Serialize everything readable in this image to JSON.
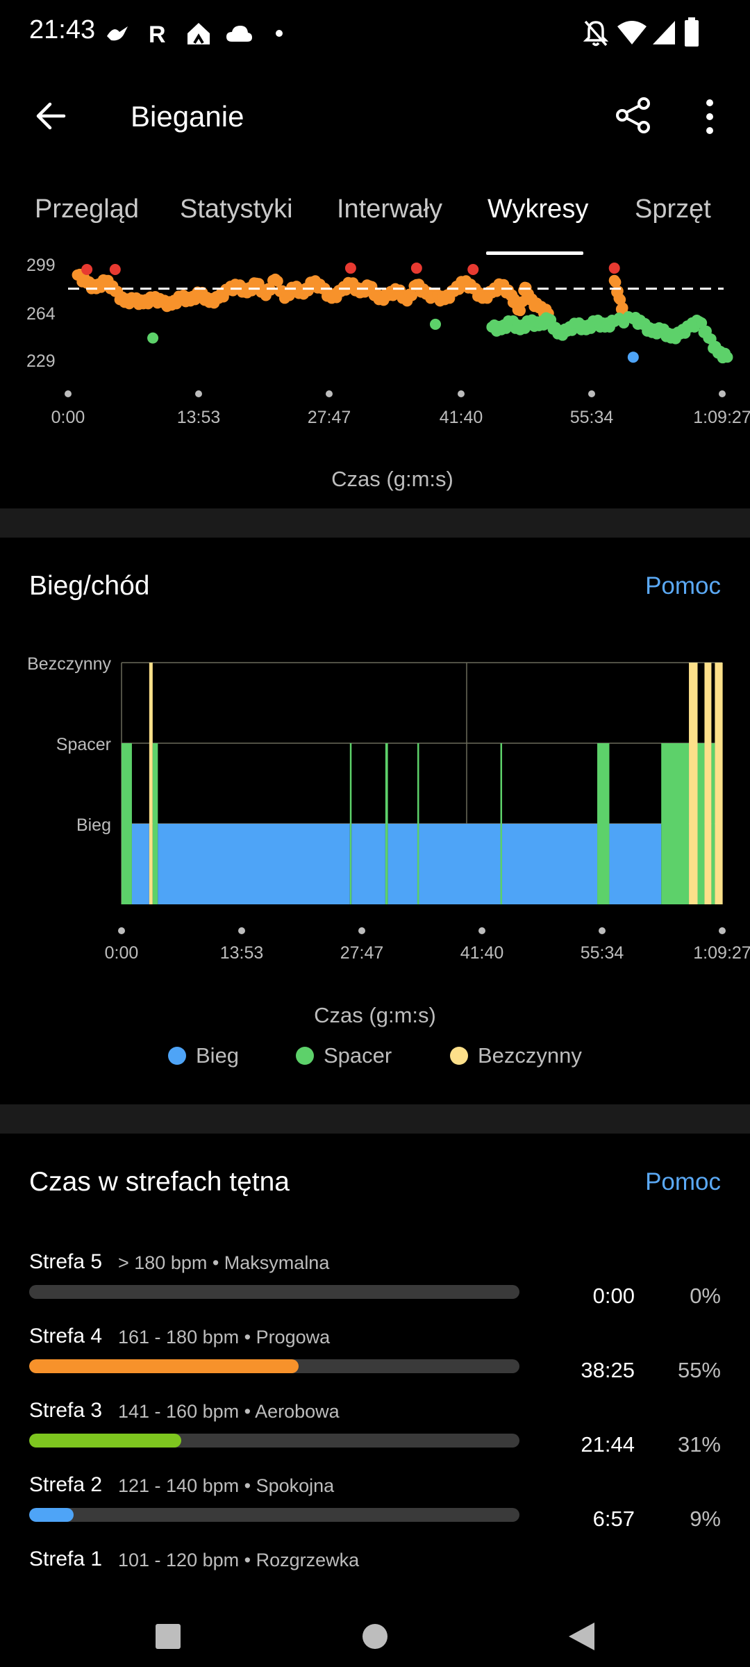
{
  "status_bar": {
    "time": "21:43",
    "left_icons": [
      "bird-icon",
      "r-icon",
      "home-icon",
      "cloud-icon",
      "dot-icon"
    ],
    "right_icons": [
      "bell-off-icon",
      "wifi-icon",
      "signal-icon",
      "battery-icon"
    ]
  },
  "app_bar": {
    "title": "Bieganie",
    "back_icon": "arrow-left-icon",
    "share_icon": "share-icon",
    "menu_icon": "more-vert-icon"
  },
  "tabs": [
    {
      "label": "Przegląd",
      "active": false
    },
    {
      "label": "Statystyki",
      "active": false
    },
    {
      "label": "Interwały",
      "active": false
    },
    {
      "label": "Wykresy",
      "active": true
    },
    {
      "label": "Sprzęt",
      "active": false
    }
  ],
  "chart_data": [
    {
      "type": "scatter",
      "title": "",
      "y_ticks": [
        "299",
        "264",
        "229"
      ],
      "x_ticks": [
        "0:00",
        "13:53",
        "27:47",
        "41:40",
        "55:34",
        "1:09:27"
      ],
      "xlabel": "Czas (g:m:s)",
      "ylabel": "",
      "ylim": [
        215,
        305
      ],
      "reference_line": 286,
      "colors": {
        "orange": "#f7922b",
        "green": "#5dd16a",
        "red": "#e83a31",
        "blue": "#4ea4f7",
        "reference": "#ffffff"
      },
      "series": [
        {
          "color": "orange",
          "x_minutes": [
            1,
            2,
            3,
            4,
            5,
            6,
            7,
            8,
            9,
            10,
            11,
            12,
            13,
            14,
            15,
            16,
            17,
            18,
            19,
            20,
            21,
            22,
            23,
            24,
            25,
            26,
            27,
            28,
            29,
            30,
            31,
            32,
            33,
            34,
            35,
            36,
            37,
            38,
            39,
            40,
            41,
            42,
            43,
            44,
            45,
            46,
            47,
            47.5,
            48,
            48.5,
            49,
            50,
            51,
            58,
            58.5,
            59
          ],
          "values": [
            296,
            290,
            286,
            292,
            284,
            276,
            278,
            275,
            279,
            276,
            274,
            280,
            277,
            283,
            276,
            279,
            285,
            288,
            283,
            290,
            281,
            293,
            279,
            287,
            282,
            291,
            286,
            279,
            284,
            290,
            283,
            288,
            278,
            281,
            285,
            277,
            289,
            282,
            280,
            278,
            284,
            291,
            286,
            279,
            283,
            289,
            281,
            275,
            270,
            287,
            278,
            272,
            268,
            292,
            279,
            267
          ]
        },
        {
          "color": "green",
          "x_minutes": [
            9,
            39,
            45,
            46,
            47,
            48,
            49,
            50,
            51,
            52,
            53,
            54,
            55,
            56,
            57,
            58,
            60,
            61,
            62,
            63,
            64,
            65,
            66,
            67,
            68,
            69,
            70
          ],
          "values": [
            250,
            260,
            258,
            256,
            262,
            256,
            262,
            259,
            264,
            253,
            255,
            260,
            256,
            262,
            258,
            262,
            264,
            260,
            254,
            256,
            250,
            253,
            258,
            262,
            250,
            239,
            236
          ]
        },
        {
          "color": "red",
          "x_minutes": [
            2,
            5,
            30,
            37,
            43,
            58
          ],
          "values": [
            300,
            300,
            301,
            301,
            300,
            301
          ]
        },
        {
          "color": "blue",
          "x_minutes": [
            60
          ],
          "values": [
            236
          ]
        }
      ]
    },
    {
      "type": "area",
      "title": "Bieg/chód",
      "help_label": "Pomoc",
      "categories": [
        "Bezczynny",
        "Spacer",
        "Bieg"
      ],
      "x_ticks": [
        "0:00",
        "13:53",
        "27:47",
        "41:40",
        "55:34",
        "1:09:27"
      ],
      "xlabel": "Czas (g:m:s)",
      "legend": [
        {
          "label": "Bieg",
          "color": "#4ea4f7"
        },
        {
          "label": "Spacer",
          "color": "#5dd16a"
        },
        {
          "label": "Bezczynny",
          "color": "#fde08a"
        }
      ],
      "segments_minutes": [
        {
          "from": 0,
          "to": 1.2,
          "state": "Spacer"
        },
        {
          "from": 1.2,
          "to": 3.2,
          "state": "Bieg"
        },
        {
          "from": 3.2,
          "to": 3.6,
          "state": "Bezczynny"
        },
        {
          "from": 3.6,
          "to": 4.2,
          "state": "Spacer"
        },
        {
          "from": 4.2,
          "to": 26.4,
          "state": "Bieg"
        },
        {
          "from": 26.4,
          "to": 26.6,
          "state": "Spacer"
        },
        {
          "from": 26.6,
          "to": 30.5,
          "state": "Bieg"
        },
        {
          "from": 30.5,
          "to": 30.8,
          "state": "Spacer"
        },
        {
          "from": 30.8,
          "to": 34.2,
          "state": "Bieg"
        },
        {
          "from": 34.2,
          "to": 34.4,
          "state": "Spacer"
        },
        {
          "from": 34.4,
          "to": 43.8,
          "state": "Bieg"
        },
        {
          "from": 43.8,
          "to": 44.0,
          "state": "Spacer"
        },
        {
          "from": 44.0,
          "to": 55.0,
          "state": "Bieg"
        },
        {
          "from": 55.0,
          "to": 56.4,
          "state": "Spacer"
        },
        {
          "from": 56.4,
          "to": 62.4,
          "state": "Bieg"
        },
        {
          "from": 62.4,
          "to": 65.6,
          "state": "Spacer"
        },
        {
          "from": 65.6,
          "to": 66.6,
          "state": "Bezczynny"
        },
        {
          "from": 66.6,
          "to": 67.4,
          "state": "Spacer"
        },
        {
          "from": 67.4,
          "to": 68.2,
          "state": "Bezczynny"
        },
        {
          "from": 68.2,
          "to": 68.6,
          "state": "Spacer"
        },
        {
          "from": 68.6,
          "to": 69.5,
          "state": "Bezczynny"
        }
      ]
    }
  ],
  "zones_section": {
    "title": "Czas w strefach tętna",
    "help_label": "Pomoc",
    "zones": [
      {
        "name": "Strefa 5",
        "desc": "> 180 bpm • Maksymalna",
        "duration": "0:00",
        "percent": "0%",
        "fraction": 0.0,
        "color": "#3a3a3a"
      },
      {
        "name": "Strefa 4",
        "desc": "161 - 180 bpm • Progowa",
        "duration": "38:25",
        "percent": "55%",
        "fraction": 0.55,
        "color": "#f7922b"
      },
      {
        "name": "Strefa 3",
        "desc": "141 - 160 bpm • Aerobowa",
        "duration": "21:44",
        "percent": "31%",
        "fraction": 0.31,
        "color": "#7ec61f"
      },
      {
        "name": "Strefa 2",
        "desc": "121 - 140 bpm • Spokojna",
        "duration": "6:57",
        "percent": "9%",
        "fraction": 0.09,
        "color": "#4ea4f7"
      },
      {
        "name": "Strefa 1",
        "desc": "101 - 120 bpm • Rozgrzewka"
      }
    ]
  },
  "nav_bar": {
    "icons": [
      "recents-square-icon",
      "home-circle-icon",
      "back-triangle-icon"
    ]
  }
}
